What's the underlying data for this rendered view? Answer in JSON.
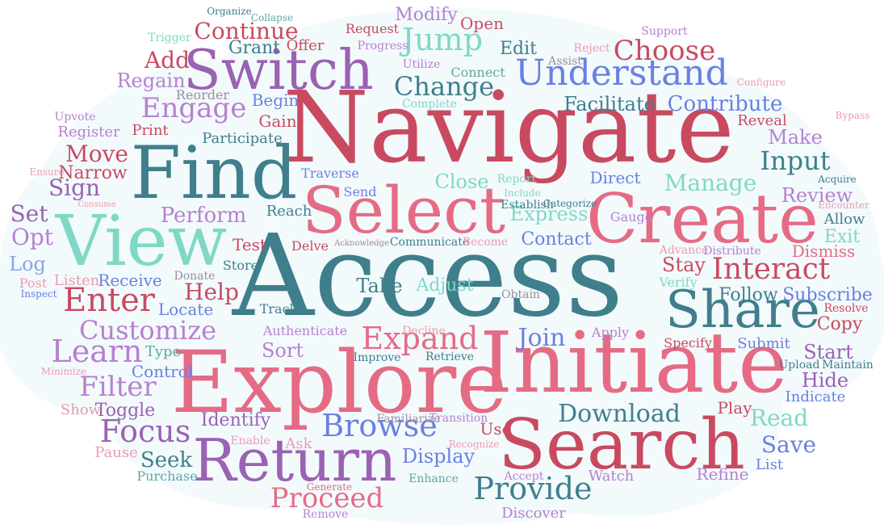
{
  "palette": {
    "background": "#ffffff",
    "cloud_fill": "#f3fafc",
    "deep_red": "#c94a60",
    "pink": "#e56b85",
    "light_pink": "#ec9bb1",
    "teal_blue": "#3f7f8c",
    "teal": "#5ea8a2",
    "mint": "#7fd8c6",
    "purple": "#9a62b3",
    "lavender": "#b681cf",
    "blue": "#6a80e0",
    "light_blue": "#8aa6e6",
    "gray": "#9a8c9d"
  },
  "words": [
    "Access",
    "Navigate",
    "Initiate",
    "Explore",
    "Search",
    "Find",
    "View",
    "Select",
    "Create",
    "Share",
    "Switch",
    "Return",
    "Browse",
    "Understand",
    "Interact",
    "Expand",
    "Jump",
    "Enter",
    "Customize",
    "Provide",
    "Engage",
    "Learn",
    "Filter",
    "Focus",
    "Proceed",
    "Download",
    "Join",
    "Choose",
    "Change",
    "Contribute",
    "Input",
    "Manage",
    "Review",
    "Facilitate",
    "Continue",
    "Add",
    "Regain",
    "Modify",
    "Open",
    "Edit",
    "Help",
    "Sort",
    "Display",
    "Save",
    "Read",
    "Perform",
    "Move",
    "Sign",
    "Set",
    "Opt",
    "Log",
    "Post",
    "Listen",
    "Receive",
    "Take",
    "Adjust",
    "Locate",
    "Follow",
    "Subscribe",
    "Copy",
    "Start",
    "Hide",
    "Stay",
    "Make",
    "Exit",
    "Allow",
    "Contact",
    "Express",
    "Close",
    "Direct",
    "Identify",
    "Toggle",
    "Control",
    "Seek",
    "Pause",
    "Show",
    "Purchase",
    "Enhance",
    "Discover",
    "Watch",
    "Refine",
    "List",
    "Play",
    "Indicate",
    "Track",
    "Authenticate",
    "Decline",
    "Apply",
    "Specify",
    "Submit",
    "Type",
    "Minimize",
    "Inspect",
    "Consume",
    "Ensure",
    "Narrow",
    "Register",
    "Print",
    "Upvote",
    "Reorder",
    "Trigger",
    "Organize",
    "Collapse",
    "Grant",
    "Offer",
    "Request",
    "Progress",
    "Utilize",
    "Connect",
    "Complete",
    "Assist",
    "Reject",
    "Support",
    "Configure",
    "Bypass",
    "Reveal",
    "Acquire",
    "Encounter",
    "Resolve",
    "Dismiss",
    "Advance",
    "Distribute",
    "Verify",
    "Obtain",
    "Gauge",
    "Categorize",
    "Include",
    "Establish",
    "Report",
    "Send",
    "Reach",
    "Traverse",
    "Participate",
    "Gain",
    "Begin",
    "Test",
    "Store",
    "Delve",
    "Acknowledge",
    "Communicate",
    "Become",
    "Donate",
    "Improve",
    "Retrieve",
    "Familiarize",
    "Transition",
    "Use",
    "Recognize",
    "Ask",
    "Enable",
    "Generate",
    "Remove",
    "Accept",
    "Upload",
    "Maintain"
  ]
}
